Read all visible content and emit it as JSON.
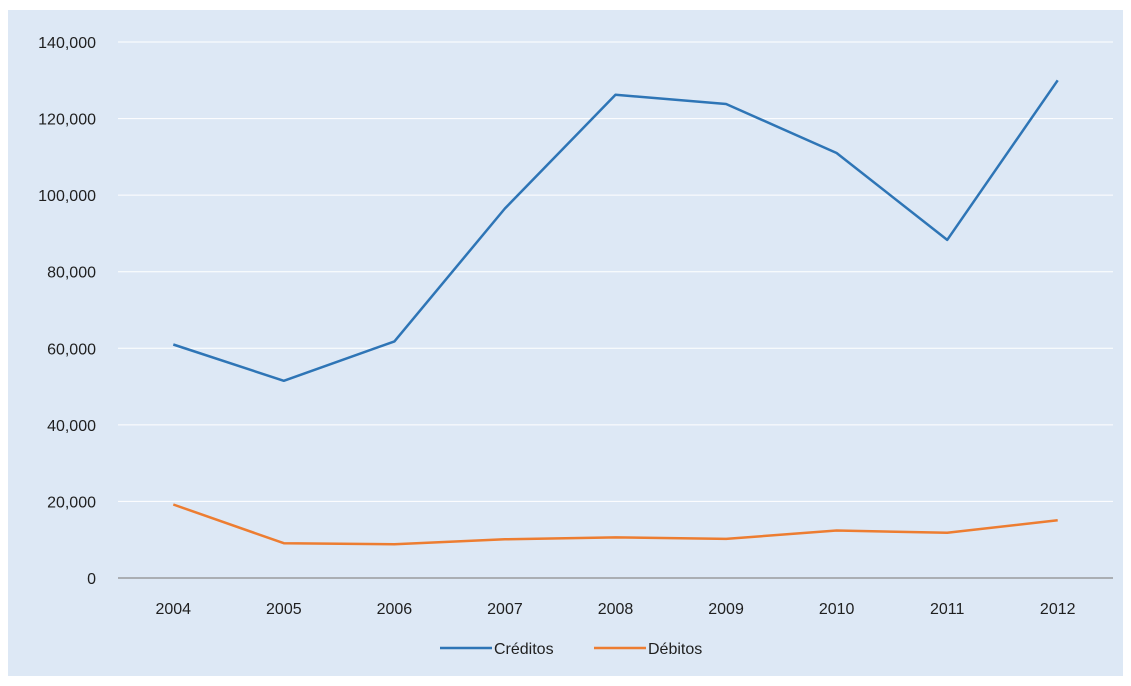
{
  "chart_data": {
    "type": "line",
    "categories": [
      "2004",
      "2005",
      "2006",
      "2007",
      "2008",
      "2009",
      "2010",
      "2011",
      "2012"
    ],
    "series": [
      {
        "name": "Créditos",
        "color": "#2e75b6",
        "values": [
          61000,
          51500,
          61800,
          96500,
          126200,
          123800,
          111000,
          88300,
          130000
        ]
      },
      {
        "name": "Débitos",
        "color": "#ed7d31",
        "values": [
          19200,
          9100,
          8800,
          10100,
          10600,
          10200,
          12400,
          11800,
          15100
        ]
      }
    ],
    "yticks": [
      "0",
      "20,000",
      "40,000",
      "60,000",
      "80,000",
      "100,000",
      "120,000",
      "140,000"
    ],
    "ylim": [
      0,
      140000
    ],
    "ytick_step": 20000,
    "grid": true,
    "legend_position": "bottom",
    "background": "#dde8f5",
    "gridline_color": "#ffffff",
    "axis_color": "#8c8c8c"
  }
}
